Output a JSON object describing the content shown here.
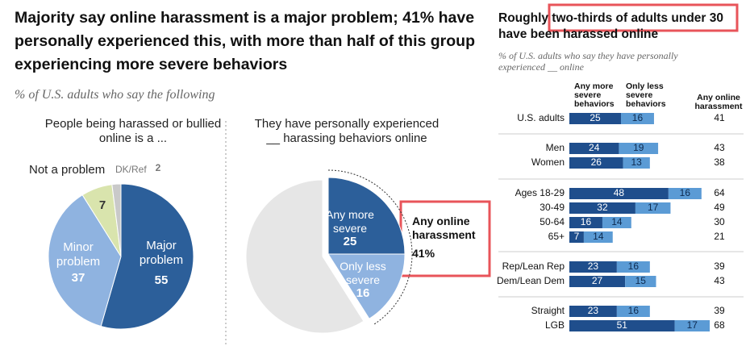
{
  "header": {
    "title": "Majority say online harassment is a major problem; 41% have personally experienced this, with more than half of this group experiencing more severe behaviors",
    "subtitle": "% of U.S. adults who say the following"
  },
  "chart_data": [
    {
      "type": "pie",
      "title": "People being harassed or bullied online is a ...",
      "categories": [
        "Major problem",
        "Minor problem",
        "Not a problem",
        "DK/Ref"
      ],
      "values": [
        55,
        37,
        7,
        2
      ],
      "colors": [
        "#2c5f9a",
        "#8fb3e0",
        "#d9e4ad",
        "#c9c9c9"
      ]
    },
    {
      "type": "pie",
      "title": "They have personally experienced __ harassing behaviors online",
      "categories": [
        "Any more severe",
        "Only less severe",
        null
      ],
      "values": [
        25,
        16,
        59
      ],
      "colors": [
        "#2c5f9a",
        "#8fb3e0",
        "#e6e6e6"
      ],
      "annotation": {
        "text": "Any online harassment",
        "value": 41,
        "value_label": "41%"
      }
    },
    {
      "type": "bar",
      "orientation": "horizontal",
      "stacked": true,
      "title": "Roughly two-thirds of adults under 30 have been harassed online",
      "subtitle": "% of U.S. adults who say they have personally experienced __ online",
      "categories": [
        "U.S. adults",
        "Men",
        "Women",
        "Ages 18-29",
        "30-49",
        "50-64",
        "65+",
        "Rep/Lean Rep",
        "Dem/Lean Dem",
        "Straight",
        "LGB"
      ],
      "series": [
        {
          "name": "Any more severe behaviors",
          "color": "#1f4e8c",
          "values": [
            25,
            24,
            26,
            48,
            32,
            16,
            7,
            23,
            27,
            23,
            51
          ]
        },
        {
          "name": "Only less severe behaviors",
          "color": "#5b9bd5",
          "values": [
            16,
            19,
            13,
            16,
            17,
            14,
            14,
            16,
            15,
            16,
            17
          ]
        }
      ],
      "totals_name": "Any online harassment",
      "totals": [
        41,
        43,
        38,
        64,
        49,
        30,
        21,
        39,
        43,
        39,
        68
      ]
    }
  ]
}
